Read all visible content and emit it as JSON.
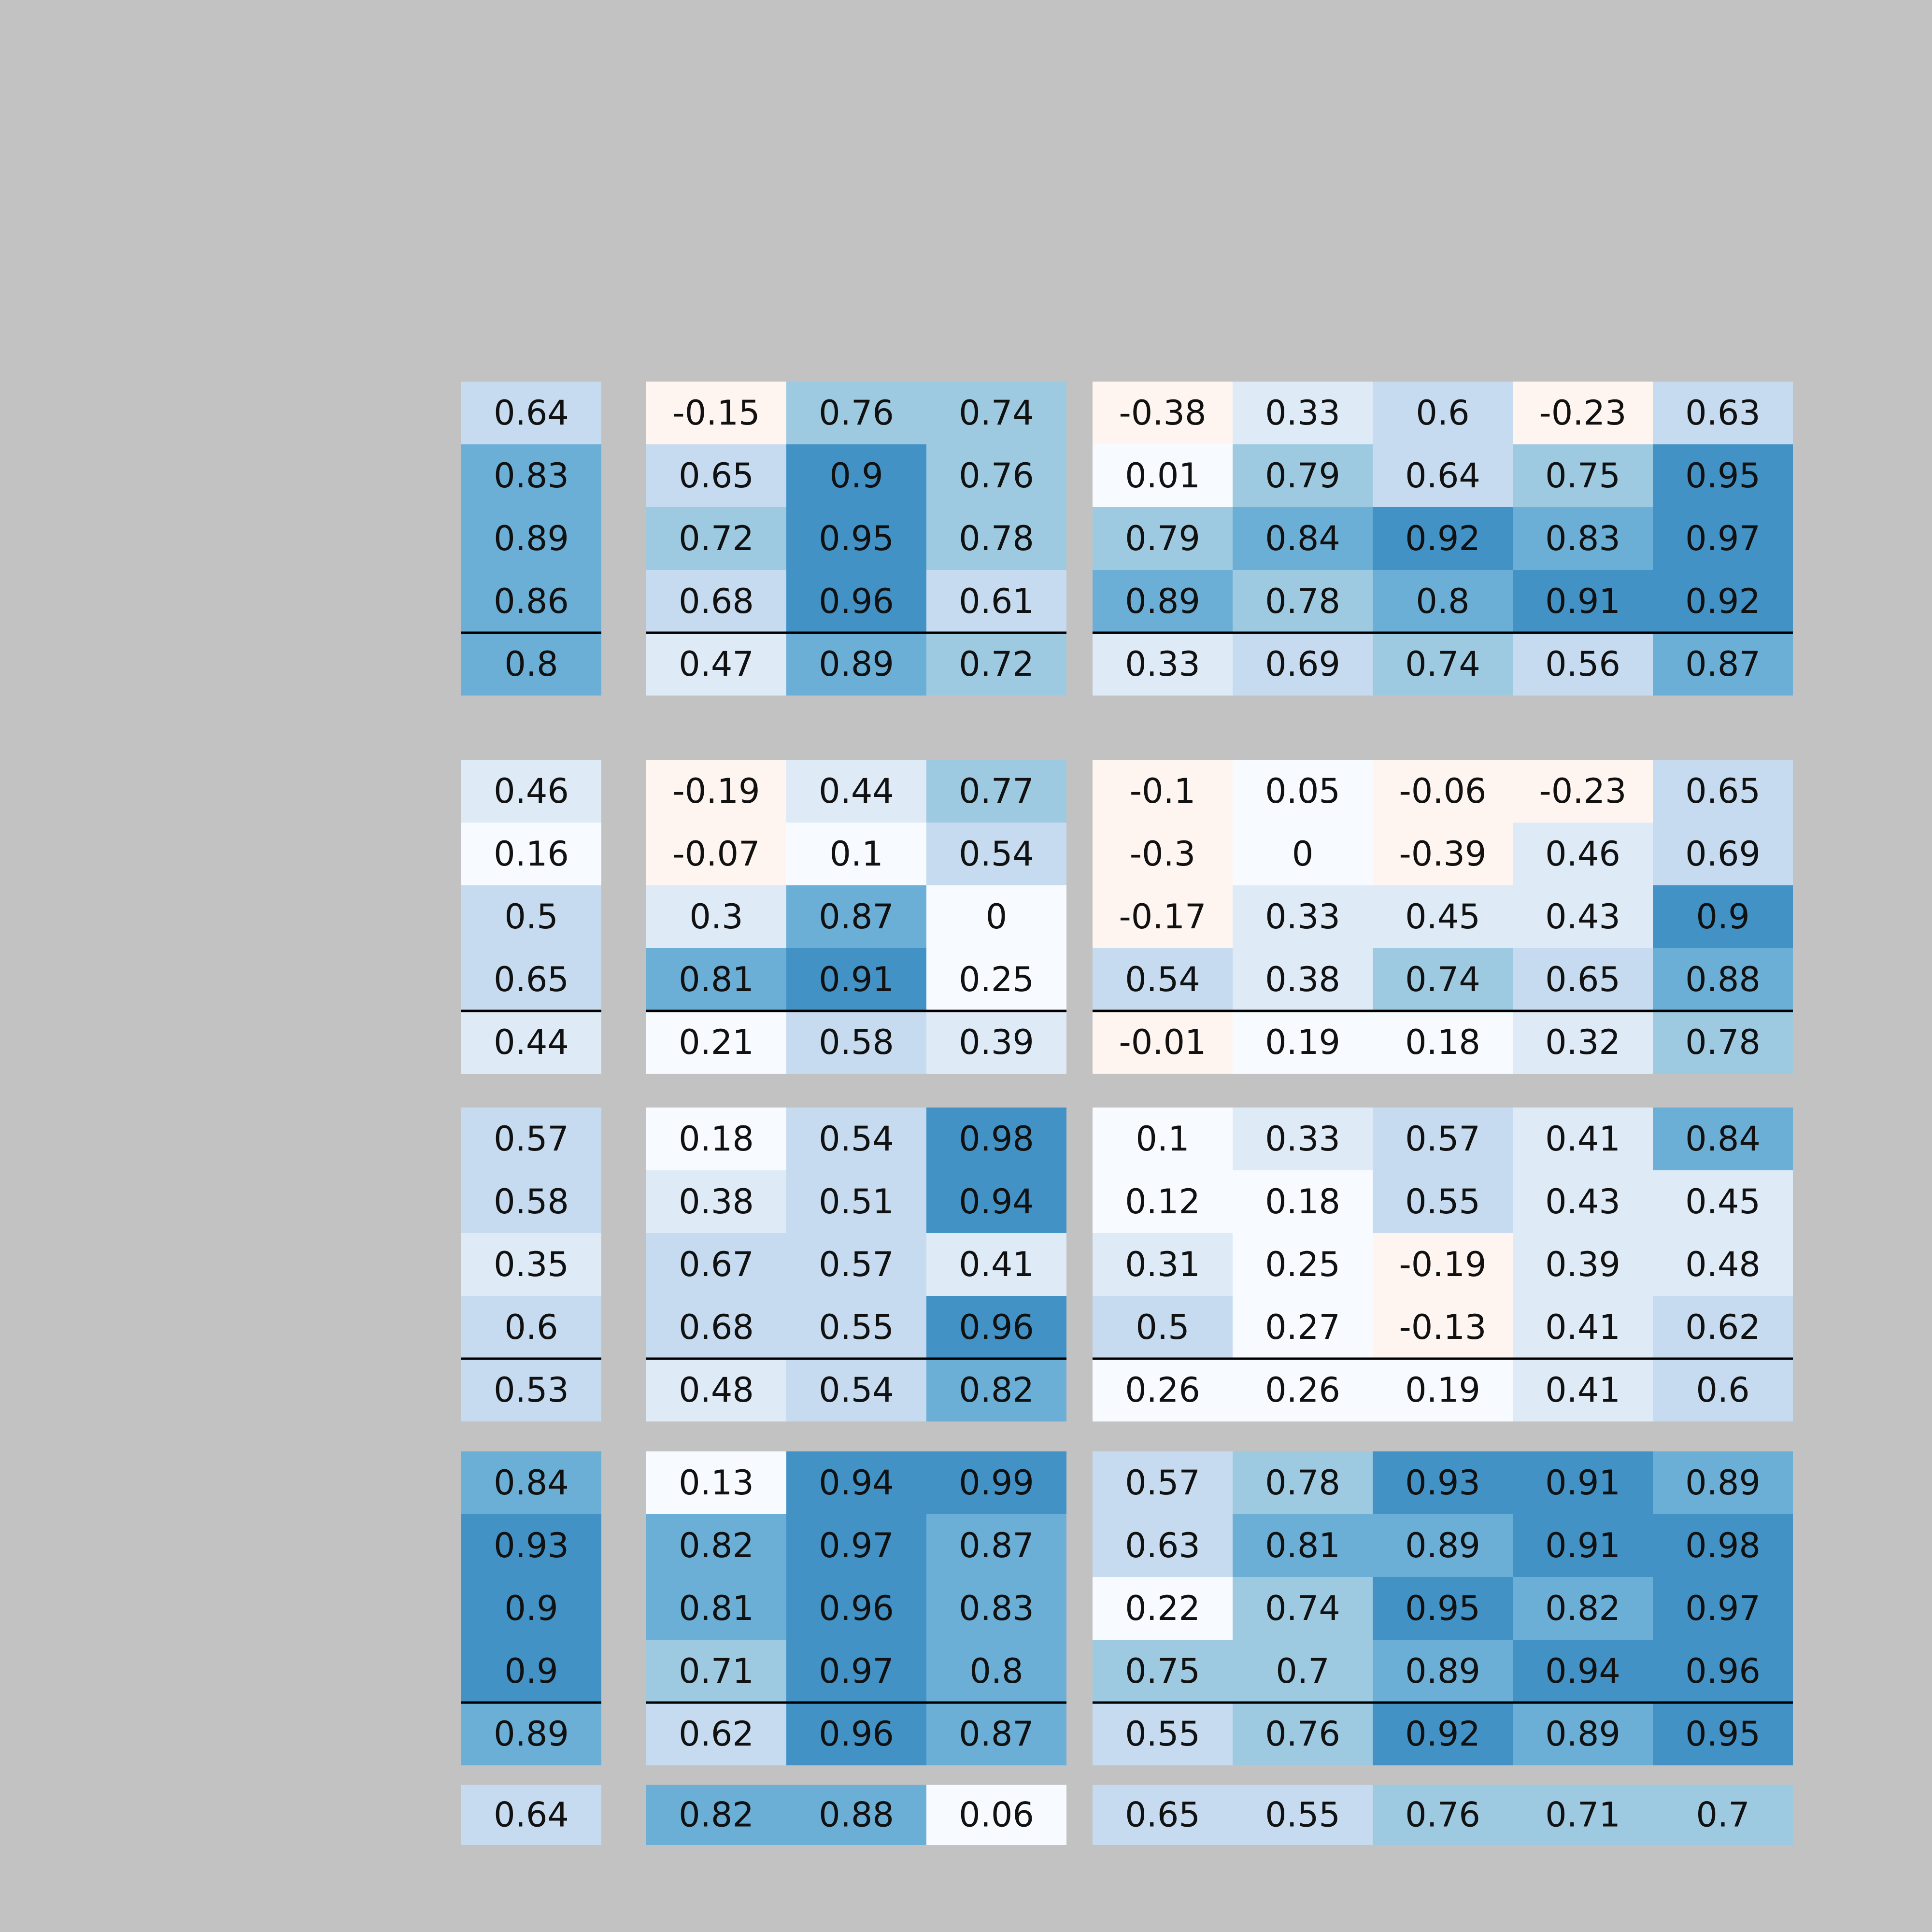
{
  "chart_data": {
    "type": "heatmap",
    "title": "",
    "xlabel": "",
    "ylabel": "",
    "value_range": [
      -1,
      1
    ],
    "colors": {
      "background": "#c2c2c2",
      "negative_light": "#fff5f0",
      "near_zero": "#f7fbff",
      "bin_0_3": "#deebf7",
      "bin_0_5": "#c6dbef",
      "bin_0_7": "#9ecae1",
      "bin_0_8": "#6baed6",
      "bin_0_9": "#4292c6",
      "separator": "#000000",
      "text": "#111111"
    },
    "column_groups": [
      {
        "columns": 1
      },
      {
        "columns": 3
      },
      {
        "columns": 5
      }
    ],
    "row_blocks": [
      {
        "rows": [
          [
            [
              0.64
            ],
            [
              -0.15,
              0.76,
              0.74
            ],
            [
              -0.38,
              0.33,
              0.6,
              -0.23,
              0.63
            ]
          ],
          [
            [
              0.83
            ],
            [
              0.65,
              0.9,
              0.76
            ],
            [
              0.01,
              0.79,
              0.64,
              0.75,
              0.95
            ]
          ],
          [
            [
              0.89
            ],
            [
              0.72,
              0.95,
              0.78
            ],
            [
              0.79,
              0.84,
              0.92,
              0.83,
              0.97
            ]
          ],
          [
            [
              0.86
            ],
            [
              0.68,
              0.96,
              0.61
            ],
            [
              0.89,
              0.78,
              0.8,
              0.91,
              0.92
            ]
          ]
        ],
        "summary": [
          [
            0.8
          ],
          [
            0.47,
            0.89,
            0.72
          ],
          [
            0.33,
            0.69,
            0.74,
            0.56,
            0.87
          ]
        ]
      },
      {
        "rows": [
          [
            [
              0.46
            ],
            [
              -0.19,
              0.44,
              0.77
            ],
            [
              -0.1,
              0.05,
              -0.06,
              -0.23,
              0.65
            ]
          ],
          [
            [
              0.16
            ],
            [
              -0.07,
              0.1,
              0.54
            ],
            [
              -0.3,
              0,
              -0.39,
              0.46,
              0.69
            ]
          ],
          [
            [
              0.5
            ],
            [
              0.3,
              0.87,
              0
            ],
            [
              -0.17,
              0.33,
              0.45,
              0.43,
              0.9
            ]
          ],
          [
            [
              0.65
            ],
            [
              0.81,
              0.91,
              0.25
            ],
            [
              0.54,
              0.38,
              0.74,
              0.65,
              0.88
            ]
          ]
        ],
        "summary": [
          [
            0.44
          ],
          [
            0.21,
            0.58,
            0.39
          ],
          [
            -0.01,
            0.19,
            0.18,
            0.32,
            0.78
          ]
        ]
      },
      {
        "rows": [
          [
            [
              0.57
            ],
            [
              0.18,
              0.54,
              0.98
            ],
            [
              0.1,
              0.33,
              0.57,
              0.41,
              0.84
            ]
          ],
          [
            [
              0.58
            ],
            [
              0.38,
              0.51,
              0.94
            ],
            [
              0.12,
              0.18,
              0.55,
              0.43,
              0.45
            ]
          ],
          [
            [
              0.35
            ],
            [
              0.67,
              0.57,
              0.41
            ],
            [
              0.31,
              0.25,
              -0.19,
              0.39,
              0.48
            ]
          ],
          [
            [
              0.6
            ],
            [
              0.68,
              0.55,
              0.96
            ],
            [
              0.5,
              0.27,
              -0.13,
              0.41,
              0.62
            ]
          ]
        ],
        "summary": [
          [
            0.53
          ],
          [
            0.48,
            0.54,
            0.82
          ],
          [
            0.26,
            0.26,
            0.19,
            0.41,
            0.6
          ]
        ]
      },
      {
        "rows": [
          [
            [
              0.84
            ],
            [
              0.13,
              0.94,
              0.99
            ],
            [
              0.57,
              0.78,
              0.93,
              0.91,
              0.89
            ]
          ],
          [
            [
              0.93
            ],
            [
              0.82,
              0.97,
              0.87
            ],
            [
              0.63,
              0.81,
              0.89,
              0.91,
              0.98
            ]
          ],
          [
            [
              0.9
            ],
            [
              0.81,
              0.96,
              0.83
            ],
            [
              0.22,
              0.74,
              0.95,
              0.82,
              0.97
            ]
          ],
          [
            [
              0.9
            ],
            [
              0.71,
              0.97,
              0.8
            ],
            [
              0.75,
              0.7,
              0.89,
              0.94,
              0.96
            ]
          ]
        ],
        "summary": [
          [
            0.89
          ],
          [
            0.62,
            0.96,
            0.87
          ],
          [
            0.55,
            0.76,
            0.92,
            0.89,
            0.95
          ]
        ]
      }
    ],
    "overall_row": [
      [
        0.64
      ],
      [
        0.82,
        0.88,
        0.06
      ],
      [
        0.65,
        0.55,
        0.76,
        0.71,
        0.7
      ]
    ],
    "grid": false,
    "legend": "none"
  }
}
